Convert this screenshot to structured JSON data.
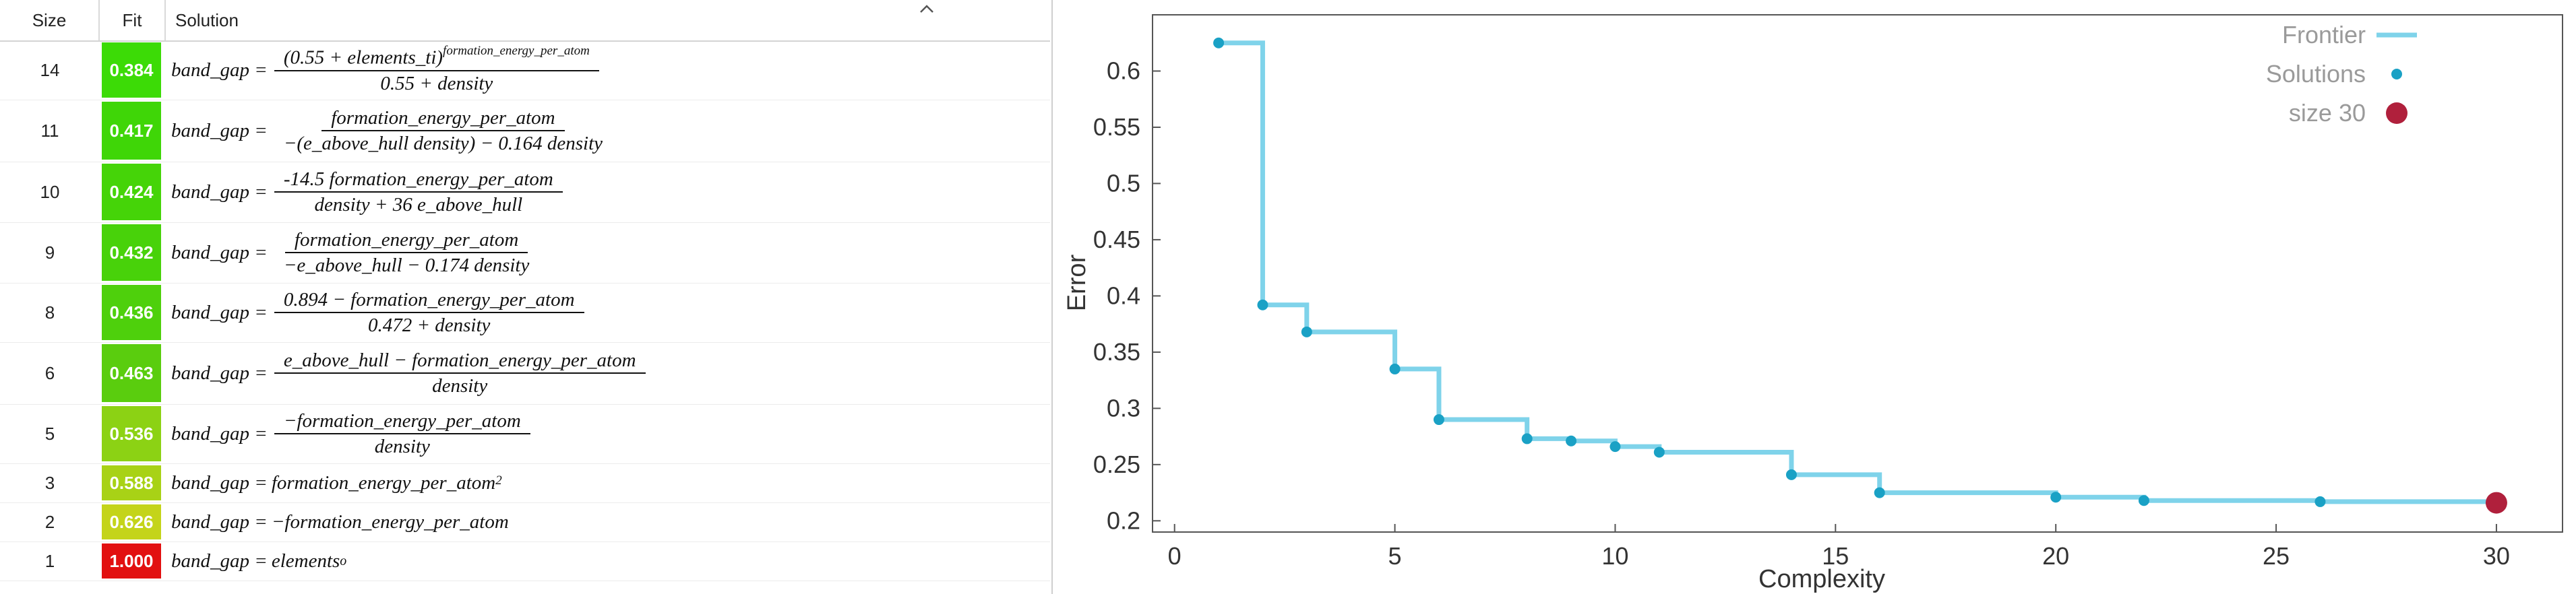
{
  "table": {
    "columns": [
      "Size",
      "Fit",
      "Solution"
    ],
    "rows": [
      {
        "size": "14",
        "fit": "0.384",
        "fit_color": "#3cdb06",
        "lhs": "band_gap =",
        "num": "(0.55 + elements_ti)",
        "num_sup": "formation_energy_per_atom",
        "den": "0.55 + density"
      },
      {
        "size": "11",
        "fit": "0.417",
        "fit_color": "#3fd607",
        "lhs": "band_gap =",
        "num": "formation_energy_per_atom",
        "den": "−(e_above_hull density) − 0.164 density"
      },
      {
        "size": "10",
        "fit": "0.424",
        "fit_color": "#45d408",
        "lhs": "band_gap =",
        "num": "-14.5 formation_energy_per_atom",
        "den": "density + 36 e_above_hull"
      },
      {
        "size": "9",
        "fit": "0.432",
        "fit_color": "#48d20a",
        "lhs": "band_gap =",
        "num": "formation_energy_per_atom",
        "den": "−e_above_hull − 0.174 density"
      },
      {
        "size": "8",
        "fit": "0.436",
        "fit_color": "#4ed00c",
        "lhs": "band_gap =",
        "num": "0.894 − formation_energy_per_atom",
        "den": "0.472 + density"
      },
      {
        "size": "6",
        "fit": "0.463",
        "fit_color": "#5acd0e",
        "lhs": "band_gap =",
        "num": "e_above_hull − formation_energy_per_atom",
        "den": "density"
      },
      {
        "size": "5",
        "fit": "0.536",
        "fit_color": "#8cd214",
        "lhs": "band_gap =",
        "num": "−formation_energy_per_atom",
        "den": "density"
      },
      {
        "size": "3",
        "fit": "0.588",
        "fit_color": "#a8d216",
        "lhs": "band_gap =",
        "expr": "formation_energy_per_atom",
        "expr_sup": "2"
      },
      {
        "size": "2",
        "fit": "0.626",
        "fit_color": "#c4d41a",
        "lhs": "band_gap =",
        "expr": "−formation_energy_per_atom"
      },
      {
        "size": "1",
        "fit": "1.000",
        "fit_color": "#e21010",
        "lhs": "band_gap =",
        "expr": "elements",
        "expr_sub": "o"
      }
    ]
  },
  "chart_data": {
    "type": "line",
    "xlabel": "Complexity",
    "ylabel": "Error",
    "xlim": [
      -0.5,
      31.5
    ],
    "ylim": [
      0.19,
      0.65
    ],
    "xticks": [
      0,
      5,
      10,
      15,
      20,
      25,
      30
    ],
    "yticks": [
      0.2,
      0.25,
      0.3,
      0.35,
      0.4,
      0.45,
      0.5,
      0.55,
      0.6
    ],
    "ytick_labels": [
      "0.2",
      "0.25",
      "0.3",
      "0.35",
      "0.4",
      "0.45",
      "0.5",
      "0.55",
      "0.6"
    ],
    "grid": false,
    "legend_position": "top-right",
    "series": [
      {
        "name": "Frontier",
        "kind": "step",
        "color": "#7fd3ea",
        "x": [
          1,
          2,
          3,
          5,
          6,
          8,
          9,
          10,
          11,
          14,
          16,
          20,
          22,
          26,
          30
        ],
        "y": [
          0.625,
          0.392,
          0.368,
          0.335,
          0.29,
          0.273,
          0.271,
          0.266,
          0.261,
          0.241,
          0.225,
          0.221,
          0.218,
          0.217,
          0.216
        ]
      },
      {
        "name": "Solutions",
        "kind": "scatter",
        "color": "#1aa1c5",
        "x": [
          1,
          2,
          3,
          5,
          6,
          8,
          9,
          10,
          11,
          14,
          16,
          20,
          22,
          26
        ],
        "y": [
          0.625,
          0.392,
          0.368,
          0.335,
          0.29,
          0.273,
          0.271,
          0.266,
          0.261,
          0.241,
          0.225,
          0.221,
          0.218,
          0.217
        ]
      },
      {
        "name": "size 30",
        "kind": "highlight",
        "color": "#b0203c",
        "x": [
          30
        ],
        "y": [
          0.216
        ]
      }
    ]
  }
}
